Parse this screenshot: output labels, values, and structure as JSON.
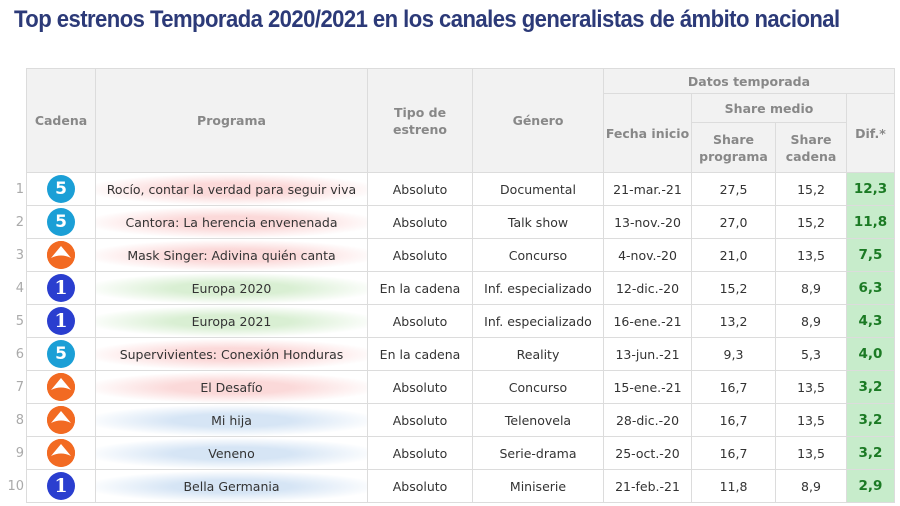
{
  "title": "Top estrenos Temporada 2020/2021 en los canales generalistas de ámbito nacional",
  "headers": {
    "cadena": "Cadena",
    "programa": "Programa",
    "tipo": "Tipo de estreno",
    "genero": "Género",
    "datos": "Datos temporada",
    "fecha": "Fecha inicio",
    "share_medio": "Share medio",
    "share_programa": "Share programa",
    "share_cadena": "Share cadena",
    "dif": "Dif.*"
  },
  "colors": {
    "title": "#2c3a78",
    "telecinco": "#1b9fd6",
    "antena3": "#f26a22",
    "la1": "#2a3ecf",
    "dif_bg": "#c7eccb",
    "dif_text": "#1b7a24",
    "prog_red": "#fbd9d9",
    "prog_green": "#d9efd3",
    "prog_blue": "#d6e5f5"
  },
  "rows": [
    {
      "n": "1",
      "cadena": "telecinco",
      "logo": "5",
      "programa": "Rocío, contar la verdad para seguir viva",
      "tint": "red",
      "tipo": "Absoluto",
      "genero": "Documental",
      "fecha": "21-mar.-21",
      "sp": "27,5",
      "sc": "15,2",
      "dif": "12,3"
    },
    {
      "n": "2",
      "cadena": "telecinco",
      "logo": "5",
      "programa": "Cantora: La herencia envenenada",
      "tint": "red",
      "tipo": "Absoluto",
      "genero": "Talk show",
      "fecha": "13-nov.-20",
      "sp": "27,0",
      "sc": "15,2",
      "dif": "11,8"
    },
    {
      "n": "3",
      "cadena": "antena3",
      "logo": "",
      "programa": "Mask Singer: Adivina quién canta",
      "tint": "red",
      "tipo": "Absoluto",
      "genero": "Concurso",
      "fecha": "4-nov.-20",
      "sp": "21,0",
      "sc": "13,5",
      "dif": "7,5"
    },
    {
      "n": "4",
      "cadena": "la1",
      "logo": "1",
      "programa": "Europa 2020",
      "tint": "green",
      "tipo": "En la cadena",
      "genero": "Inf. especializado",
      "fecha": "12-dic.-20",
      "sp": "15,2",
      "sc": "8,9",
      "dif": "6,3"
    },
    {
      "n": "5",
      "cadena": "la1",
      "logo": "1",
      "programa": "Europa 2021",
      "tint": "green",
      "tipo": "Absoluto",
      "genero": "Inf. especializado",
      "fecha": "16-ene.-21",
      "sp": "13,2",
      "sc": "8,9",
      "dif": "4,3"
    },
    {
      "n": "6",
      "cadena": "telecinco",
      "logo": "5",
      "programa": "Supervivientes: Conexión Honduras",
      "tint": "red",
      "tipo": "En la cadena",
      "genero": "Reality",
      "fecha": "13-jun.-21",
      "sp": "9,3",
      "sc": "5,3",
      "dif": "4,0"
    },
    {
      "n": "7",
      "cadena": "antena3",
      "logo": "",
      "programa": "El Desafío",
      "tint": "red",
      "tipo": "Absoluto",
      "genero": "Concurso",
      "fecha": "15-ene.-21",
      "sp": "16,7",
      "sc": "13,5",
      "dif": "3,2"
    },
    {
      "n": "8",
      "cadena": "antena3",
      "logo": "",
      "programa": "Mi hija",
      "tint": "blue",
      "tipo": "Absoluto",
      "genero": "Telenovela",
      "fecha": "28-dic.-20",
      "sp": "16,7",
      "sc": "13,5",
      "dif": "3,2"
    },
    {
      "n": "9",
      "cadena": "antena3",
      "logo": "",
      "programa": "Veneno",
      "tint": "blue",
      "tipo": "Absoluto",
      "genero": "Serie-drama",
      "fecha": "25-oct.-20",
      "sp": "16,7",
      "sc": "13,5",
      "dif": "3,2"
    },
    {
      "n": "10",
      "cadena": "la1",
      "logo": "1",
      "programa": "Bella Germania",
      "tint": "blue",
      "tipo": "Absoluto",
      "genero": "Miniserie",
      "fecha": "21-feb.-21",
      "sp": "11,8",
      "sc": "8,9",
      "dif": "2,9"
    }
  ]
}
